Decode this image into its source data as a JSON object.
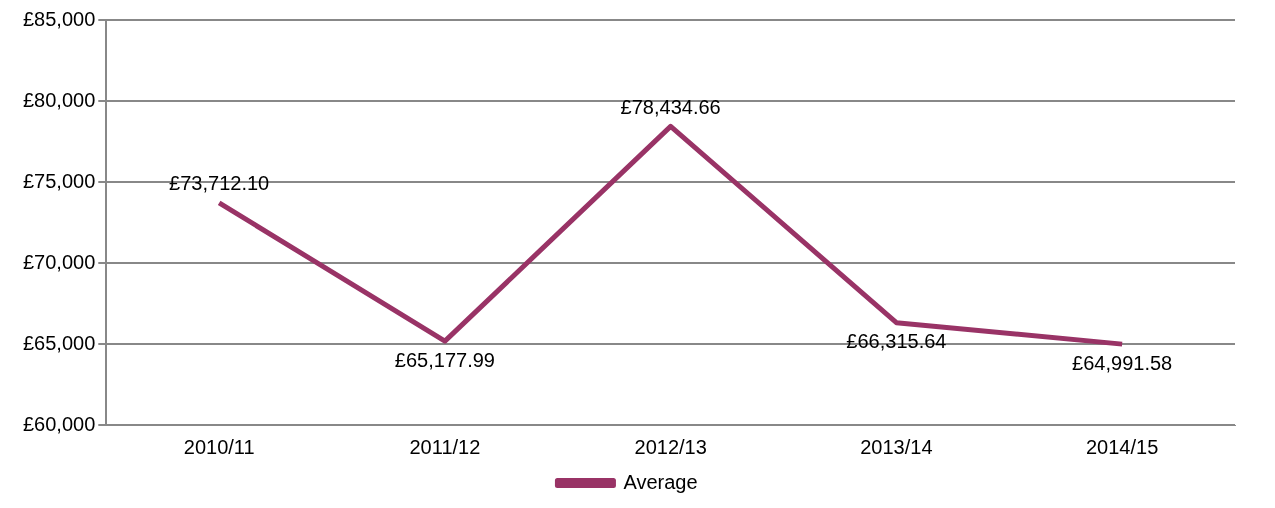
{
  "chart_data": {
    "type": "line",
    "categories": [
      "2010/11",
      "2011/12",
      "2012/13",
      "2013/14",
      "2014/15"
    ],
    "series": [
      {
        "name": "Average",
        "color": "#993366",
        "values": [
          73712.1,
          65177.99,
          78434.66,
          66315.64,
          64991.58
        ],
        "value_labels": [
          "£73,712.10",
          "£65,177.99",
          "£78,434.66",
          "£66,315.64",
          "£64,991.58"
        ]
      }
    ],
    "ylim": [
      60000,
      85000
    ],
    "yticks": [
      {
        "value": 60000,
        "label": "£60,000"
      },
      {
        "value": 65000,
        "label": "£65,000"
      },
      {
        "value": 70000,
        "label": "£70,000"
      },
      {
        "value": 75000,
        "label": "£75,000"
      },
      {
        "value": 80000,
        "label": "£80,000"
      },
      {
        "value": 85000,
        "label": "£85,000"
      }
    ],
    "grid": "y",
    "legend": "bottom",
    "marker": "none",
    "line_style": "solid"
  }
}
